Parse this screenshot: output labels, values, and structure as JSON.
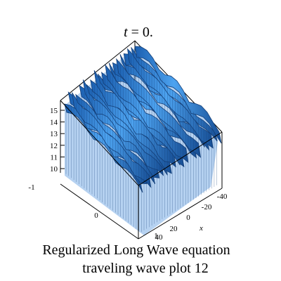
{
  "chart_data": {
    "type": "surface",
    "title_var": "t",
    "title_rest": " = 0.",
    "xlabel": "x",
    "x_ticks": [
      "-40",
      "-20",
      "0",
      "20",
      "40"
    ],
    "y_ticks": [
      "-1",
      "0",
      "1"
    ],
    "z_ticks": [
      "10",
      "11",
      "12",
      "13",
      "14",
      "15"
    ],
    "zlim": [
      10,
      15.5
    ],
    "surface_color": "#2f7fd8",
    "shadow_color": "#143f78",
    "caption_line1": "Regularized Long Wave equation",
    "caption_line2": "traveling wave plot 12"
  }
}
